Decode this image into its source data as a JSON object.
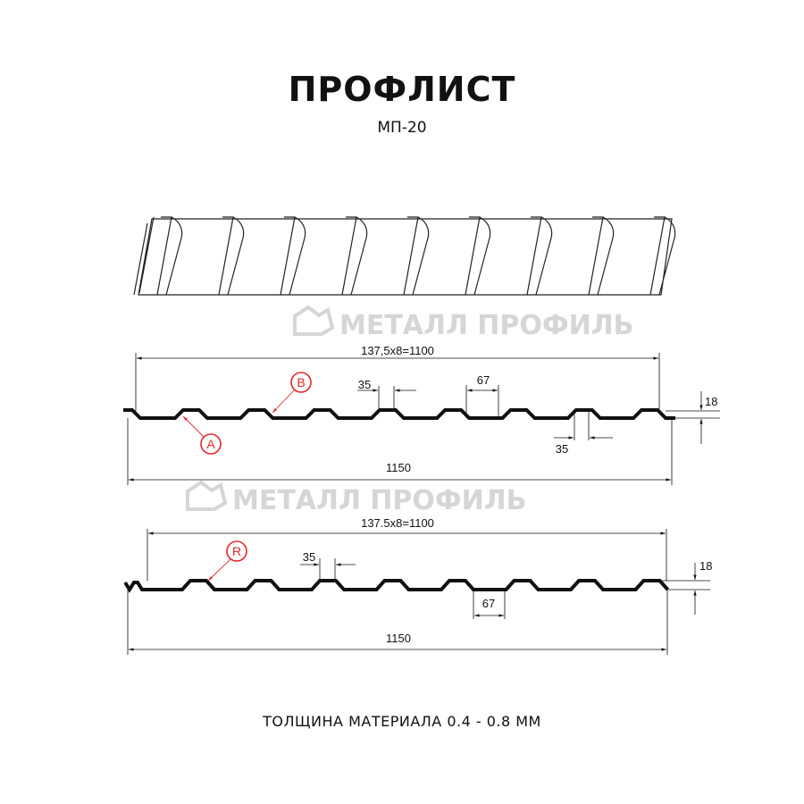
{
  "title": "ПРОФЛИСТ",
  "subtitle": "МП-20",
  "footer": "ТОЛЩИНА МАТЕРИАЛА 0.4 - 0.8 ММ",
  "watermark": "МЕТАЛЛ ПРОФИЛЬ",
  "profile_a": {
    "pitch_label": "137,5x8=1100",
    "width_label": "1150",
    "top_flat_label": "35",
    "bottom_flat_label": "67",
    "height_label": "18",
    "bottom_label_35": "35",
    "marker_a": "A",
    "marker_b": "B"
  },
  "profile_b": {
    "pitch_label": "137.5x8=1100",
    "width_label": "1150",
    "top_flat_label": "35",
    "bottom_flat_label": "67",
    "height_label": "18",
    "marker_r": "R"
  },
  "colors": {
    "marker": "#e3262b",
    "line": "#111111",
    "watermark": "#d6d6d6"
  }
}
